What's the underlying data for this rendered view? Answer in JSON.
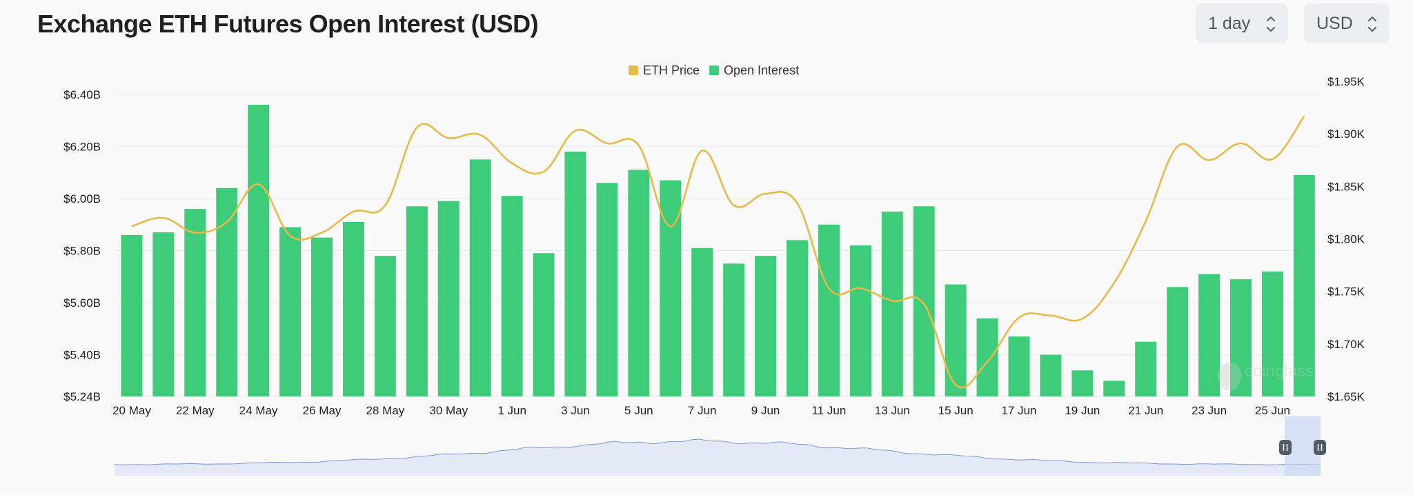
{
  "header": {
    "title": "Exchange ETH Futures Open Interest (USD)"
  },
  "controls": {
    "interval": "1 day",
    "unit": "USD"
  },
  "watermark": "coinglass",
  "colors": {
    "bar": "#3ecb7a",
    "line": "#e7b94a",
    "navigator_fill": "#e4e9f8",
    "navigator_line": "#7f97d9"
  },
  "chart_data": {
    "type": "bar",
    "title": "Exchange ETH Futures Open Interest (USD)",
    "legend": {
      "position": "top-center",
      "items": [
        "ETH Price",
        "Open Interest"
      ]
    },
    "x_tick_labels": [
      "20 May",
      "22 May",
      "24 May",
      "26 May",
      "28 May",
      "30 May",
      "1 Jun",
      "3 Jun",
      "5 Jun",
      "7 Jun",
      "9 Jun",
      "11 Jun",
      "13 Jun",
      "15 Jun",
      "17 Jun",
      "19 Jun",
      "21 Jun",
      "23 Jun",
      "25 Jun"
    ],
    "categories": [
      "20 May",
      "21 May",
      "22 May",
      "23 May",
      "24 May",
      "25 May",
      "26 May",
      "27 May",
      "28 May",
      "29 May",
      "30 May",
      "31 May",
      "1 Jun",
      "2 Jun",
      "3 Jun",
      "4 Jun",
      "5 Jun",
      "6 Jun",
      "7 Jun",
      "8 Jun",
      "9 Jun",
      "10 Jun",
      "11 Jun",
      "12 Jun",
      "13 Jun",
      "14 Jun",
      "15 Jun",
      "16 Jun",
      "17 Jun",
      "18 Jun",
      "19 Jun",
      "20 Jun",
      "21 Jun",
      "22 Jun",
      "23 Jun",
      "24 Jun",
      "25 Jun",
      "26 Jun"
    ],
    "y_left": {
      "label": "",
      "ticks": [
        "$5.24B",
        "$5.40B",
        "$5.60B",
        "$5.80B",
        "$6.00B",
        "$6.20B",
        "$6.40B"
      ],
      "range": [
        5.24,
        6.45
      ],
      "unit": "B USD"
    },
    "y_right": {
      "label": "",
      "ticks": [
        "$1.65K",
        "$1.70K",
        "$1.75K",
        "$1.80K",
        "$1.85K",
        "$1.90K",
        "$1.95K"
      ],
      "range": [
        1.65,
        1.95
      ],
      "unit": "K USD"
    },
    "grid": true,
    "series": [
      {
        "name": "Open Interest",
        "type": "bar",
        "axis": "left",
        "values": [
          5.86,
          5.87,
          5.96,
          6.04,
          6.36,
          5.89,
          5.85,
          5.91,
          5.78,
          5.97,
          5.99,
          6.15,
          6.01,
          5.79,
          6.18,
          6.06,
          6.11,
          6.07,
          5.81,
          5.75,
          5.78,
          5.84,
          5.9,
          5.82,
          5.95,
          5.97,
          5.67,
          5.54,
          5.47,
          5.4,
          5.34,
          5.3,
          5.45,
          5.66,
          5.71,
          5.69,
          5.72,
          6.09
        ]
      },
      {
        "name": "ETH Price",
        "type": "line",
        "axis": "right",
        "values": [
          1.812,
          1.82,
          1.806,
          1.816,
          1.852,
          1.803,
          1.806,
          1.826,
          1.832,
          1.906,
          1.896,
          1.899,
          1.872,
          1.864,
          1.903,
          1.891,
          1.889,
          1.812,
          1.884,
          1.832,
          1.843,
          1.834,
          1.753,
          1.753,
          1.741,
          1.738,
          1.661,
          1.683,
          1.725,
          1.727,
          1.724,
          1.758,
          1.817,
          1.888,
          1.875,
          1.891,
          1.876,
          1.917
        ]
      }
    ]
  }
}
